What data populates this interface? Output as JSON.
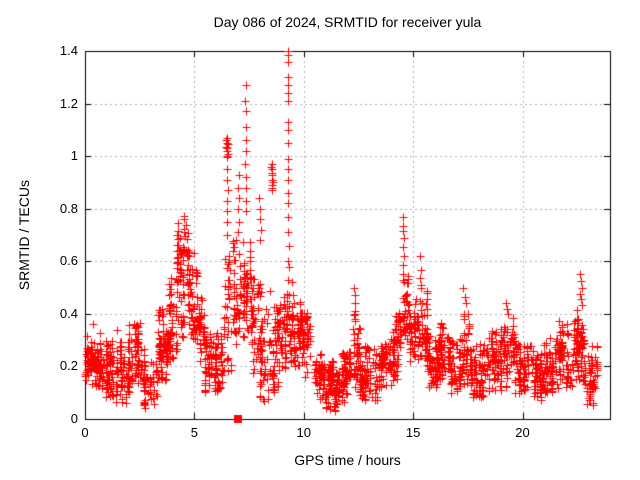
{
  "window": {
    "background": "#ffffff",
    "frame_color": "#000000",
    "text_color": "#000000"
  },
  "chart_data": {
    "type": "scatter",
    "title": "Day 086 of 2024, SRMTID for receiver yula",
    "xlabel": "GPS time / hours",
    "ylabel": "SRMTID / TECUs",
    "xlim": [
      0,
      24
    ],
    "ylim": [
      0,
      1.4
    ],
    "xticks": {
      "values": [
        0,
        5,
        10,
        15,
        20
      ],
      "labels": [
        "0",
        "5",
        "10",
        "15",
        "20"
      ]
    },
    "yticks": {
      "values": [
        0,
        0.2,
        0.4,
        0.6,
        0.8,
        1.0,
        1.2,
        1.4
      ],
      "labels": [
        "0",
        "0.2",
        "0.4",
        "0.6",
        "0.8",
        "1",
        "1.2",
        "1.4"
      ]
    },
    "grid": {
      "show": true,
      "color": "#b4b4b4",
      "style": "dotted"
    },
    "legend": {
      "show": false
    },
    "marker": {
      "shape": "plus",
      "color": "#ff0000",
      "size": 9
    },
    "series": [
      {
        "name": "srmtid-scatter",
        "render": "band-scatter",
        "seed": 86,
        "band_segments": [
          [
            0.0,
            0.15,
            0.14,
            0.33,
            18
          ],
          [
            0.15,
            0.7,
            0.12,
            0.33,
            85
          ],
          [
            0.7,
            1.3,
            0.08,
            0.3,
            75
          ],
          [
            1.3,
            2.0,
            0.06,
            0.3,
            70
          ],
          [
            2.0,
            2.6,
            0.12,
            0.36,
            65
          ],
          [
            2.6,
            3.3,
            0.04,
            0.28,
            60
          ],
          [
            3.3,
            3.85,
            0.15,
            0.42,
            85
          ],
          [
            3.85,
            4.2,
            0.22,
            0.55,
            45
          ],
          [
            4.2,
            4.5,
            0.3,
            0.8,
            50
          ],
          [
            4.5,
            4.85,
            0.33,
            0.85,
            45
          ],
          [
            4.85,
            5.15,
            0.25,
            0.62,
            35
          ],
          [
            5.15,
            5.45,
            0.2,
            0.46,
            35
          ],
          [
            5.45,
            5.85,
            0.08,
            0.35,
            50
          ],
          [
            5.85,
            6.35,
            0.1,
            0.36,
            55
          ],
          [
            6.35,
            6.65,
            0.18,
            0.62,
            30
          ],
          [
            6.65,
            7.2,
            0.15,
            0.68,
            45
          ],
          [
            7.2,
            7.6,
            0.3,
            0.68,
            45
          ],
          [
            7.6,
            7.95,
            0.1,
            0.55,
            40
          ],
          [
            7.95,
            8.35,
            0.07,
            0.55,
            45
          ],
          [
            8.35,
            8.9,
            0.1,
            0.5,
            55
          ],
          [
            8.9,
            9.4,
            0.18,
            0.48,
            50
          ],
          [
            9.4,
            9.85,
            0.2,
            0.45,
            50
          ],
          [
            9.85,
            10.35,
            0.16,
            0.42,
            55
          ],
          [
            10.35,
            10.9,
            0.06,
            0.26,
            55
          ],
          [
            10.9,
            11.7,
            0.03,
            0.22,
            95
          ],
          [
            11.7,
            12.25,
            0.06,
            0.26,
            60
          ],
          [
            12.25,
            12.55,
            0.12,
            0.4,
            35
          ],
          [
            12.55,
            13.35,
            0.07,
            0.28,
            85
          ],
          [
            13.35,
            14.15,
            0.12,
            0.36,
            85
          ],
          [
            14.15,
            14.5,
            0.15,
            0.46,
            40
          ],
          [
            14.5,
            14.8,
            0.25,
            0.58,
            30
          ],
          [
            14.8,
            15.25,
            0.18,
            0.46,
            45
          ],
          [
            15.25,
            15.65,
            0.2,
            0.5,
            40
          ],
          [
            15.65,
            16.15,
            0.12,
            0.33,
            55
          ],
          [
            16.15,
            16.65,
            0.13,
            0.38,
            55
          ],
          [
            16.65,
            17.15,
            0.1,
            0.31,
            55
          ],
          [
            17.15,
            17.65,
            0.13,
            0.42,
            55
          ],
          [
            17.65,
            18.4,
            0.08,
            0.3,
            80
          ],
          [
            18.4,
            19.0,
            0.1,
            0.35,
            65
          ],
          [
            19.0,
            19.65,
            0.12,
            0.42,
            65
          ],
          [
            19.65,
            20.2,
            0.08,
            0.3,
            60
          ],
          [
            20.2,
            20.95,
            0.07,
            0.28,
            70
          ],
          [
            20.95,
            21.65,
            0.1,
            0.31,
            70
          ],
          [
            21.65,
            22.25,
            0.12,
            0.38,
            65
          ],
          [
            22.25,
            22.62,
            0.14,
            0.42,
            45
          ],
          [
            22.62,
            22.92,
            0.1,
            0.4,
            35
          ],
          [
            22.92,
            23.4,
            0.05,
            0.28,
            50
          ]
        ],
        "extra_points": [
          [
            0.35,
            0.36
          ],
          [
            1.45,
            0.34
          ],
          [
            2.5,
            0.365
          ],
          [
            3.5,
            0.42
          ],
          [
            5.0,
            0.63
          ],
          [
            6.45,
            1.06
          ],
          [
            6.48,
            1.03
          ],
          [
            6.5,
            1.05
          ],
          [
            6.52,
            1.01
          ],
          [
            6.47,
            1.0
          ],
          [
            6.53,
            1.045
          ],
          [
            6.49,
            1.07
          ],
          [
            6.51,
            0.995
          ],
          [
            6.5,
            1.02
          ],
          [
            6.46,
            1.035
          ],
          [
            6.5,
            0.95
          ],
          [
            6.48,
            0.91
          ],
          [
            6.52,
            0.87
          ],
          [
            6.5,
            0.83
          ],
          [
            6.49,
            0.79
          ],
          [
            6.51,
            0.75
          ],
          [
            6.5,
            0.7
          ],
          [
            7.02,
            0.93
          ],
          [
            7.0,
            0.88
          ],
          [
            7.04,
            0.84
          ],
          [
            7.01,
            0.8
          ],
          [
            7.03,
            0.75
          ],
          [
            7.0,
            0.71
          ],
          [
            7.35,
            1.27
          ],
          [
            7.33,
            1.21
          ],
          [
            7.37,
            1.17
          ],
          [
            7.34,
            1.11
          ],
          [
            7.36,
            1.06
          ],
          [
            7.35,
            1.02
          ],
          [
            7.33,
            0.97
          ],
          [
            7.36,
            0.92
          ],
          [
            7.34,
            0.88
          ],
          [
            7.37,
            0.83
          ],
          [
            7.35,
            0.79
          ],
          [
            7.95,
            0.84
          ],
          [
            7.98,
            0.8
          ],
          [
            8.02,
            0.76
          ],
          [
            8.05,
            0.72
          ],
          [
            8.0,
            0.68
          ],
          [
            8.52,
            0.96
          ],
          [
            8.55,
            0.93
          ],
          [
            8.58,
            0.9
          ],
          [
            8.53,
            0.88
          ],
          [
            8.56,
            0.95
          ],
          [
            8.54,
            0.91
          ],
          [
            8.57,
            0.87
          ],
          [
            8.55,
            0.97
          ],
          [
            8.53,
            0.935
          ],
          [
            8.56,
            0.89
          ],
          [
            9.27,
            1.4
          ],
          [
            9.29,
            1.385
          ],
          [
            9.28,
            1.36
          ],
          [
            9.3,
            1.3
          ],
          [
            9.27,
            1.27
          ],
          [
            9.29,
            1.24
          ],
          [
            9.28,
            1.21
          ],
          [
            9.3,
            1.13
          ],
          [
            9.27,
            1.1
          ],
          [
            9.29,
            1.05
          ],
          [
            9.28,
            0.99
          ],
          [
            9.3,
            0.95
          ],
          [
            9.27,
            0.91
          ],
          [
            9.29,
            0.86
          ],
          [
            9.28,
            0.82
          ],
          [
            9.3,
            0.77
          ],
          [
            9.28,
            0.71
          ],
          [
            9.31,
            0.66
          ],
          [
            9.29,
            0.6
          ],
          [
            9.32,
            0.58
          ],
          [
            9.3,
            0.53
          ],
          [
            9.33,
            0.47
          ],
          [
            9.31,
            0.43
          ],
          [
            9.34,
            0.38
          ],
          [
            9.45,
            0.52
          ],
          [
            9.5,
            0.47
          ],
          [
            9.55,
            0.44
          ],
          [
            12.3,
            0.5
          ],
          [
            12.33,
            0.47
          ],
          [
            12.36,
            0.44
          ],
          [
            12.32,
            0.41
          ],
          [
            12.35,
            0.38
          ],
          [
            14.52,
            0.77
          ],
          [
            14.55,
            0.735
          ],
          [
            14.53,
            0.715
          ],
          [
            14.56,
            0.69
          ],
          [
            14.54,
            0.655
          ],
          [
            14.57,
            0.62
          ],
          [
            14.55,
            0.585
          ],
          [
            14.53,
            0.55
          ],
          [
            14.56,
            0.52
          ],
          [
            15.3,
            0.62
          ],
          [
            15.35,
            0.565
          ],
          [
            15.32,
            0.535
          ],
          [
            15.38,
            0.51
          ],
          [
            17.3,
            0.5
          ],
          [
            17.35,
            0.465
          ],
          [
            17.4,
            0.44
          ],
          [
            19.25,
            0.44
          ],
          [
            19.3,
            0.42
          ],
          [
            19.35,
            0.4
          ],
          [
            22.62,
            0.55
          ],
          [
            22.66,
            0.525
          ],
          [
            22.7,
            0.5
          ],
          [
            22.64,
            0.475
          ],
          [
            22.68,
            0.455
          ],
          [
            22.72,
            0.435
          ]
        ]
      },
      {
        "name": "flag-point",
        "render": "points",
        "marker": "filled-square",
        "color": "#ff0000",
        "points": [
          [
            7.0,
            0.0
          ]
        ]
      }
    ]
  }
}
